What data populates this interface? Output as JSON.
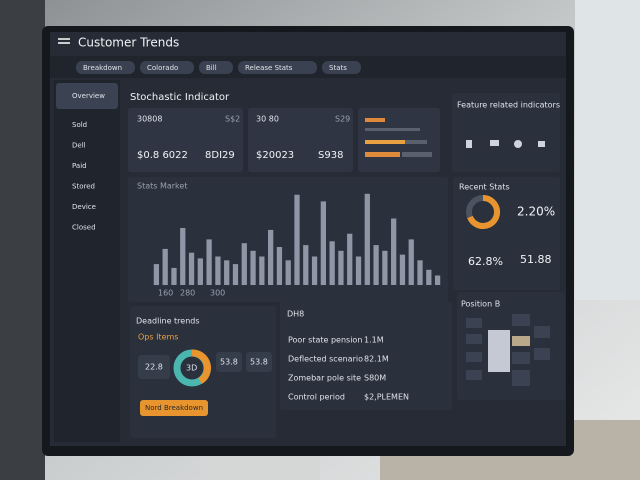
{
  "header": {
    "title": "Customer Trends",
    "tabs": [
      "Breakdown",
      "Colorado",
      "Bill",
      "Release Stats",
      "Stats"
    ]
  },
  "sidebar": {
    "items": [
      "Overview",
      "Sold",
      "Dell",
      "Paid",
      "Stored",
      "Device",
      "Closed"
    ]
  },
  "indicators": {
    "title": "Stochastic Indicator",
    "cards": [
      {
        "top": "30808",
        "top_right": "S$2",
        "bottom": "$0.8 6022",
        "bottom_right": "8DI29"
      },
      {
        "top": "30 80",
        "top_right": "S29",
        "bottom": "$20023",
        "bottom_right": "S938"
      }
    ]
  },
  "features": {
    "title": "Feature related indicators"
  },
  "stats_chart": {
    "title": "Stats Market",
    "x_labels": [
      "160",
      "280",
      "300"
    ],
    "ylim": [
      0,
      100
    ],
    "values": [
      22,
      38,
      18,
      60,
      34,
      28,
      48,
      30,
      26,
      22,
      44,
      36,
      30,
      58,
      40,
      26,
      95,
      42,
      30,
      88,
      46,
      36,
      54,
      30,
      96,
      42,
      36,
      70,
      32,
      48,
      26,
      16,
      10
    ]
  },
  "recent": {
    "title": "Recent Stats",
    "rate": "2.20%",
    "share": "62.8%",
    "count": "51.88"
  },
  "deadline": {
    "title": "Deadline trends",
    "subtitle": "Ops Items",
    "center": "3D",
    "left": "22.8",
    "mid": "53.8",
    "right": "53.8",
    "button": "Nord Breakdown"
  },
  "list": {
    "title": "DH8",
    "rows": [
      [
        "Poor state pension",
        "1.1M"
      ],
      [
        "Deflected scenario",
        "82.1M"
      ],
      [
        "Zomebar pole site",
        "S80M"
      ],
      [
        "Control period",
        "$2,PLEMEN"
      ]
    ]
  },
  "position": {
    "title": "Position B"
  }
}
